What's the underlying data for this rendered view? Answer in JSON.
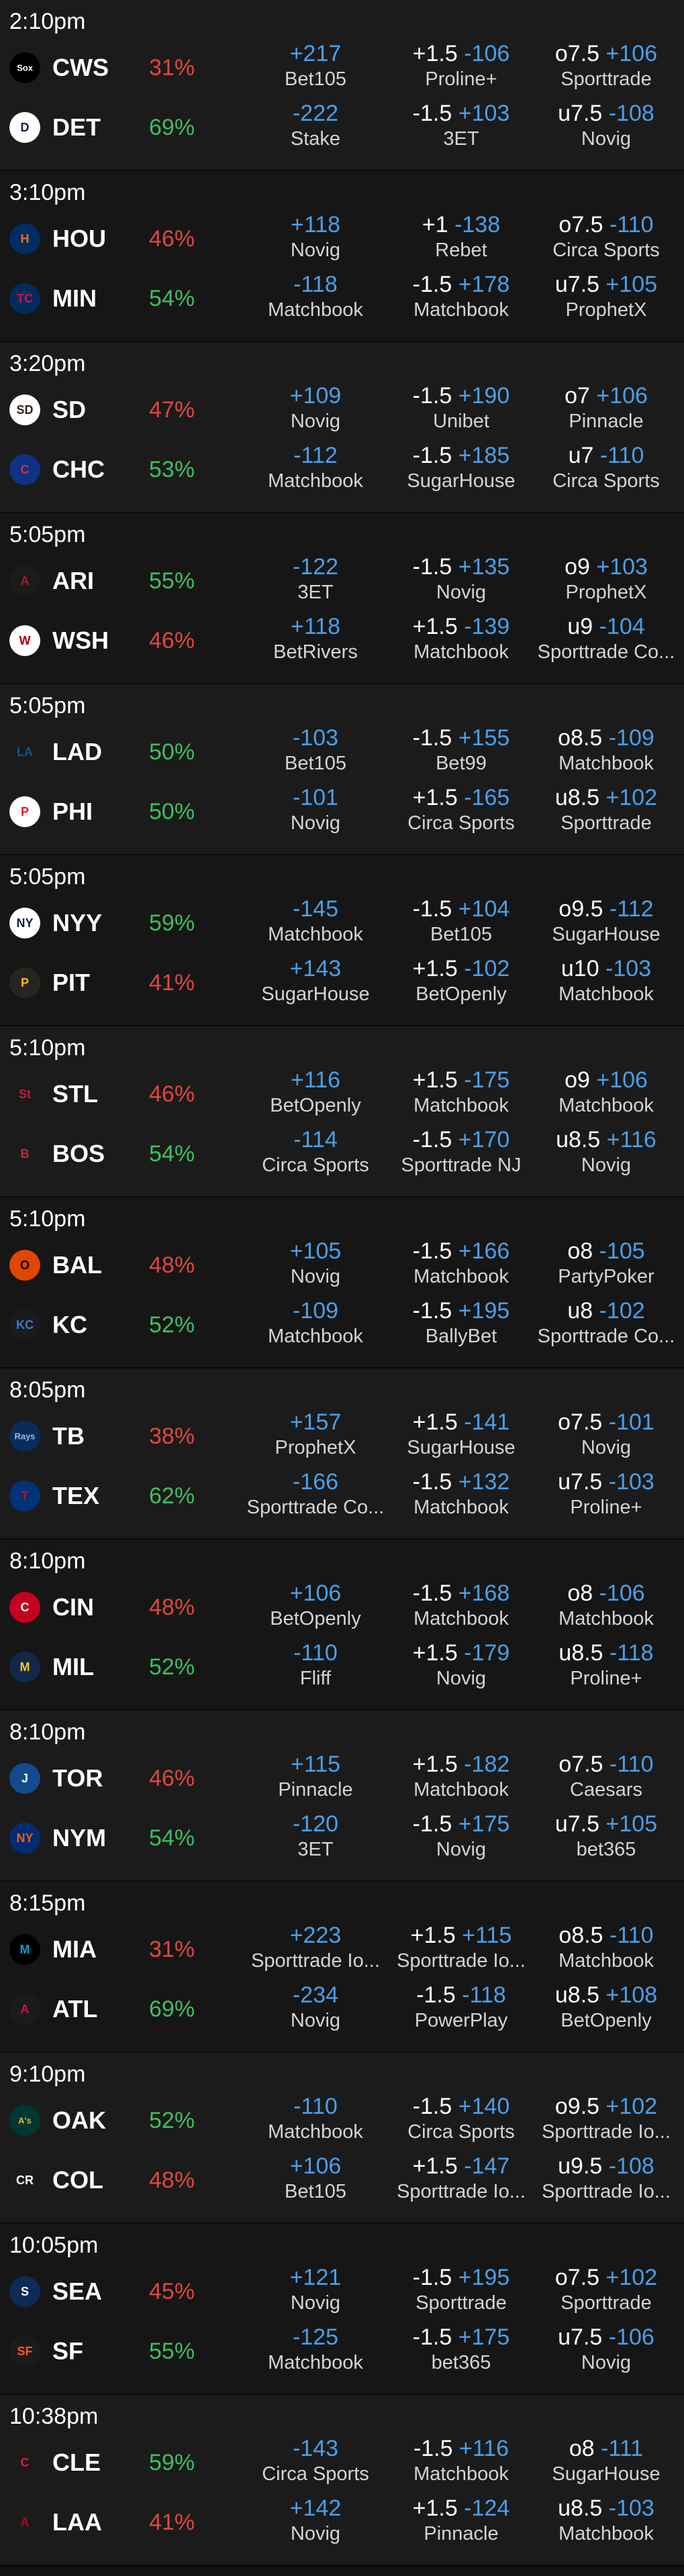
{
  "colors": {
    "background": "#111111",
    "price": "#4a9fe8",
    "probability_favorite": "#3fbf5f",
    "probability_underdog": "#e0473e"
  },
  "games": [
    {
      "time": "2:10pm",
      "teams": [
        {
          "abbr": "CWS",
          "logo_icon": "white-sox-logo-icon",
          "logo_bg": "#000000",
          "logo_fg": "#ffffff",
          "logo_mark": "Sox",
          "prob": "31%",
          "prob_level": "lo",
          "moneyline": {
            "price": "+217",
            "book": "Bet105"
          },
          "spread": {
            "point": "+1.5",
            "price": "-106",
            "book": "Proline+"
          },
          "total": {
            "point": "o7.5",
            "price": "+106",
            "book": "Sporttrade"
          }
        },
        {
          "abbr": "DET",
          "logo_icon": "tigers-logo-icon",
          "logo_bg": "#ffffff",
          "logo_fg": "#0c2340",
          "logo_mark": "D",
          "prob": "69%",
          "prob_level": "hi",
          "moneyline": {
            "price": "-222",
            "book": "Stake"
          },
          "spread": {
            "point": "-1.5",
            "price": "+103",
            "book": "3ET"
          },
          "total": {
            "point": "u7.5",
            "price": "-108",
            "book": "Novig"
          }
        }
      ]
    },
    {
      "time": "3:10pm",
      "teams": [
        {
          "abbr": "HOU",
          "logo_icon": "astros-logo-icon",
          "logo_bg": "#002d62",
          "logo_fg": "#eb6e1f",
          "logo_mark": "H",
          "prob": "46%",
          "prob_level": "lo",
          "moneyline": {
            "price": "+118",
            "book": "Novig"
          },
          "spread": {
            "point": "+1",
            "price": "-138",
            "book": "Rebet"
          },
          "total": {
            "point": "o7.5",
            "price": "-110",
            "book": "Circa Sports"
          }
        },
        {
          "abbr": "MIN",
          "logo_icon": "twins-logo-icon",
          "logo_bg": "#002b5c",
          "logo_fg": "#d31145",
          "logo_mark": "TC",
          "prob": "54%",
          "prob_level": "hi",
          "moneyline": {
            "price": "-118",
            "book": "Matchbook"
          },
          "spread": {
            "point": "-1.5",
            "price": "+178",
            "book": "Matchbook"
          },
          "total": {
            "point": "u7.5",
            "price": "+105",
            "book": "ProphetX"
          }
        }
      ]
    },
    {
      "time": "3:20pm",
      "teams": [
        {
          "abbr": "SD",
          "logo_icon": "padres-logo-icon",
          "logo_bg": "#ffffff",
          "logo_fg": "#2f241d",
          "logo_mark": "SD",
          "prob": "47%",
          "prob_level": "lo",
          "moneyline": {
            "price": "+109",
            "book": "Novig"
          },
          "spread": {
            "point": "-1.5",
            "price": "+190",
            "book": "Unibet"
          },
          "total": {
            "point": "o7",
            "price": "+106",
            "book": "Pinnacle"
          }
        },
        {
          "abbr": "CHC",
          "logo_icon": "cubs-logo-icon",
          "logo_bg": "#0e3386",
          "logo_fg": "#cc3433",
          "logo_mark": "C",
          "prob": "53%",
          "prob_level": "hi",
          "moneyline": {
            "price": "-112",
            "book": "Matchbook"
          },
          "spread": {
            "point": "-1.5",
            "price": "+185",
            "book": "SugarHouse"
          },
          "total": {
            "point": "u7",
            "price": "-110",
            "book": "Circa Sports"
          }
        }
      ]
    },
    {
      "time": "5:05pm",
      "teams": [
        {
          "abbr": "ARI",
          "logo_icon": "diamondbacks-logo-icon",
          "logo_bg": "#1b1b1b",
          "logo_fg": "#a71930",
          "logo_mark": "A",
          "prob": "55%",
          "prob_level": "hi",
          "moneyline": {
            "price": "-122",
            "book": "3ET"
          },
          "spread": {
            "point": "-1.5",
            "price": "+135",
            "book": "Novig"
          },
          "total": {
            "point": "o9",
            "price": "+103",
            "book": "ProphetX"
          }
        },
        {
          "abbr": "WSH",
          "logo_icon": "nationals-logo-icon",
          "logo_bg": "#ffffff",
          "logo_fg": "#ab0003",
          "logo_mark": "W",
          "prob": "46%",
          "prob_level": "lo",
          "moneyline": {
            "price": "+118",
            "book": "BetRivers"
          },
          "spread": {
            "point": "+1.5",
            "price": "-139",
            "book": "Matchbook"
          },
          "total": {
            "point": "u9",
            "price": "-104",
            "book": "Sporttrade Co..."
          }
        }
      ]
    },
    {
      "time": "5:05pm",
      "teams": [
        {
          "abbr": "LAD",
          "logo_icon": "dodgers-logo-icon",
          "logo_bg": "#1b1b1b",
          "logo_fg": "#005a9c",
          "logo_mark": "LA",
          "prob": "50%",
          "prob_level": "hi",
          "moneyline": {
            "price": "-103",
            "book": "Bet105"
          },
          "spread": {
            "point": "-1.5",
            "price": "+155",
            "book": "Bet99"
          },
          "total": {
            "point": "o8.5",
            "price": "-109",
            "book": "Matchbook"
          }
        },
        {
          "abbr": "PHI",
          "logo_icon": "phillies-logo-icon",
          "logo_bg": "#ffffff",
          "logo_fg": "#e81828",
          "logo_mark": "P",
          "prob": "50%",
          "prob_level": "hi",
          "moneyline": {
            "price": "-101",
            "book": "Novig"
          },
          "spread": {
            "point": "+1.5",
            "price": "-165",
            "book": "Circa Sports"
          },
          "total": {
            "point": "u8.5",
            "price": "+102",
            "book": "Sporttrade"
          }
        }
      ]
    },
    {
      "time": "5:05pm",
      "teams": [
        {
          "abbr": "NYY",
          "logo_icon": "yankees-logo-icon",
          "logo_bg": "#ffffff",
          "logo_fg": "#0c2340",
          "logo_mark": "NY",
          "prob": "59%",
          "prob_level": "hi",
          "moneyline": {
            "price": "-145",
            "book": "Matchbook"
          },
          "spread": {
            "point": "-1.5",
            "price": "+104",
            "book": "Bet105"
          },
          "total": {
            "point": "o9.5",
            "price": "-112",
            "book": "SugarHouse"
          }
        },
        {
          "abbr": "PIT",
          "logo_icon": "pirates-logo-icon",
          "logo_bg": "#27251f",
          "logo_fg": "#fdb827",
          "logo_mark": "P",
          "prob": "41%",
          "prob_level": "lo",
          "moneyline": {
            "price": "+143",
            "book": "SugarHouse"
          },
          "spread": {
            "point": "+1.5",
            "price": "-102",
            "book": "BetOpenly"
          },
          "total": {
            "point": "u10",
            "price": "-103",
            "book": "Matchbook"
          }
        }
      ]
    },
    {
      "time": "5:10pm",
      "teams": [
        {
          "abbr": "STL",
          "logo_icon": "cardinals-logo-icon",
          "logo_bg": "#1b1b1b",
          "logo_fg": "#c41e3a",
          "logo_mark": "St",
          "prob": "46%",
          "prob_level": "lo",
          "moneyline": {
            "price": "+116",
            "book": "BetOpenly"
          },
          "spread": {
            "point": "+1.5",
            "price": "-175",
            "book": "Matchbook"
          },
          "total": {
            "point": "o9",
            "price": "+106",
            "book": "Matchbook"
          }
        },
        {
          "abbr": "BOS",
          "logo_icon": "red-sox-logo-icon",
          "logo_bg": "#1b1b1b",
          "logo_fg": "#bd3039",
          "logo_mark": "B",
          "prob": "54%",
          "prob_level": "hi",
          "moneyline": {
            "price": "-114",
            "book": "Circa Sports"
          },
          "spread": {
            "point": "-1.5",
            "price": "+170",
            "book": "Sporttrade NJ"
          },
          "total": {
            "point": "u8.5",
            "price": "+116",
            "book": "Novig"
          }
        }
      ]
    },
    {
      "time": "5:10pm",
      "teams": [
        {
          "abbr": "BAL",
          "logo_icon": "orioles-logo-icon",
          "logo_bg": "#df4601",
          "logo_fg": "#000000",
          "logo_mark": "O",
          "prob": "48%",
          "prob_level": "lo",
          "moneyline": {
            "price": "+105",
            "book": "Novig"
          },
          "spread": {
            "point": "-1.5",
            "price": "+166",
            "book": "Matchbook"
          },
          "total": {
            "point": "o8",
            "price": "-105",
            "book": "PartyPoker"
          }
        },
        {
          "abbr": "KC",
          "logo_icon": "royals-logo-icon",
          "logo_bg": "#1b1b1b",
          "logo_fg": "#3a7bd5",
          "logo_mark": "KC",
          "prob": "52%",
          "prob_level": "hi",
          "moneyline": {
            "price": "-109",
            "book": "Matchbook"
          },
          "spread": {
            "point": "-1.5",
            "price": "+195",
            "book": "BallyBet"
          },
          "total": {
            "point": "u8",
            "price": "-102",
            "book": "Sporttrade Co..."
          }
        }
      ]
    },
    {
      "time": "8:05pm",
      "teams": [
        {
          "abbr": "TB",
          "logo_icon": "rays-logo-icon",
          "logo_bg": "#092c5c",
          "logo_fg": "#8fbce6",
          "logo_mark": "Rays",
          "prob": "38%",
          "prob_level": "lo",
          "moneyline": {
            "price": "+157",
            "book": "ProphetX"
          },
          "spread": {
            "point": "+1.5",
            "price": "-141",
            "book": "SugarHouse"
          },
          "total": {
            "point": "o7.5",
            "price": "-101",
            "book": "Novig"
          }
        },
        {
          "abbr": "TEX",
          "logo_icon": "rangers-logo-icon",
          "logo_bg": "#003278",
          "logo_fg": "#c0111f",
          "logo_mark": "T",
          "prob": "62%",
          "prob_level": "hi",
          "moneyline": {
            "price": "-166",
            "book": "Sporttrade Co..."
          },
          "spread": {
            "point": "-1.5",
            "price": "+132",
            "book": "Matchbook"
          },
          "total": {
            "point": "u7.5",
            "price": "-103",
            "book": "Proline+"
          }
        }
      ]
    },
    {
      "time": "8:10pm",
      "teams": [
        {
          "abbr": "CIN",
          "logo_icon": "reds-logo-icon",
          "logo_bg": "#c6011f",
          "logo_fg": "#ffffff",
          "logo_mark": "C",
          "prob": "48%",
          "prob_level": "lo",
          "moneyline": {
            "price": "+106",
            "book": "BetOpenly"
          },
          "spread": {
            "point": "-1.5",
            "price": "+168",
            "book": "Matchbook"
          },
          "total": {
            "point": "o8",
            "price": "-106",
            "book": "Matchbook"
          }
        },
        {
          "abbr": "MIL",
          "logo_icon": "brewers-logo-icon",
          "logo_bg": "#12284b",
          "logo_fg": "#ffc52f",
          "logo_mark": "M",
          "prob": "52%",
          "prob_level": "hi",
          "moneyline": {
            "price": "-110",
            "book": "Fliff"
          },
          "spread": {
            "point": "+1.5",
            "price": "-179",
            "book": "Novig"
          },
          "total": {
            "point": "u8.5",
            "price": "-118",
            "book": "Proline+"
          }
        }
      ]
    },
    {
      "time": "8:10pm",
      "teams": [
        {
          "abbr": "TOR",
          "logo_icon": "blue-jays-logo-icon",
          "logo_bg": "#134a8e",
          "logo_fg": "#ffffff",
          "logo_mark": "J",
          "prob": "46%",
          "prob_level": "lo",
          "moneyline": {
            "price": "+115",
            "book": "Pinnacle"
          },
          "spread": {
            "point": "+1.5",
            "price": "-182",
            "book": "Matchbook"
          },
          "total": {
            "point": "o7.5",
            "price": "-110",
            "book": "Caesars"
          }
        },
        {
          "abbr": "NYM",
          "logo_icon": "mets-logo-icon",
          "logo_bg": "#002d72",
          "logo_fg": "#ff5910",
          "logo_mark": "NY",
          "prob": "54%",
          "prob_level": "hi",
          "moneyline": {
            "price": "-120",
            "book": "3ET"
          },
          "spread": {
            "point": "-1.5",
            "price": "+175",
            "book": "Novig"
          },
          "total": {
            "point": "u7.5",
            "price": "+105",
            "book": "bet365"
          }
        }
      ]
    },
    {
      "time": "8:15pm",
      "teams": [
        {
          "abbr": "MIA",
          "logo_icon": "marlins-logo-icon",
          "logo_bg": "#000000",
          "logo_fg": "#00a3e0",
          "logo_mark": "M",
          "prob": "31%",
          "prob_level": "lo",
          "moneyline": {
            "price": "+223",
            "book": "Sporttrade Io..."
          },
          "spread": {
            "point": "+1.5",
            "price": "+115",
            "book": "Sporttrade Io..."
          },
          "total": {
            "point": "o8.5",
            "price": "-110",
            "book": "Matchbook"
          }
        },
        {
          "abbr": "ATL",
          "logo_icon": "braves-logo-icon",
          "logo_bg": "#1b1b1b",
          "logo_fg": "#ce1141",
          "logo_mark": "A",
          "prob": "69%",
          "prob_level": "hi",
          "moneyline": {
            "price": "-234",
            "book": "Novig"
          },
          "spread": {
            "point": "-1.5",
            "price": "-118",
            "book": "PowerPlay"
          },
          "total": {
            "point": "u8.5",
            "price": "+108",
            "book": "BetOpenly"
          }
        }
      ]
    },
    {
      "time": "9:10pm",
      "teams": [
        {
          "abbr": "OAK",
          "logo_icon": "athletics-logo-icon",
          "logo_bg": "#003831",
          "logo_fg": "#efb21e",
          "logo_mark": "A's",
          "prob": "52%",
          "prob_level": "hi",
          "moneyline": {
            "price": "-110",
            "book": "Matchbook"
          },
          "spread": {
            "point": "-1.5",
            "price": "+140",
            "book": "Circa Sports"
          },
          "total": {
            "point": "o9.5",
            "price": "+102",
            "book": "Sporttrade Io..."
          }
        },
        {
          "abbr": "COL",
          "logo_icon": "rockies-logo-icon",
          "logo_bg": "#1b1b1b",
          "logo_fg": "#ffffff",
          "logo_mark": "CR",
          "prob": "48%",
          "prob_level": "lo",
          "moneyline": {
            "price": "+106",
            "book": "Bet105"
          },
          "spread": {
            "point": "+1.5",
            "price": "-147",
            "book": "Sporttrade Io..."
          },
          "total": {
            "point": "u9.5",
            "price": "-108",
            "book": "Sporttrade Io..."
          }
        }
      ]
    },
    {
      "time": "10:05pm",
      "teams": [
        {
          "abbr": "SEA",
          "logo_icon": "mariners-logo-icon",
          "logo_bg": "#0c2c56",
          "logo_fg": "#ffffff",
          "logo_mark": "S",
          "prob": "45%",
          "prob_level": "lo",
          "moneyline": {
            "price": "+121",
            "book": "Novig"
          },
          "spread": {
            "point": "-1.5",
            "price": "+195",
            "book": "Sporttrade"
          },
          "total": {
            "point": "o7.5",
            "price": "+102",
            "book": "Sporttrade"
          }
        },
        {
          "abbr": "SF",
          "logo_icon": "giants-logo-icon",
          "logo_bg": "#1b1b1b",
          "logo_fg": "#fd5a1e",
          "logo_mark": "SF",
          "prob": "55%",
          "prob_level": "hi",
          "moneyline": {
            "price": "-125",
            "book": "Matchbook"
          },
          "spread": {
            "point": "-1.5",
            "price": "+175",
            "book": "bet365"
          },
          "total": {
            "point": "u7.5",
            "price": "-106",
            "book": "Novig"
          }
        }
      ]
    },
    {
      "time": "10:38pm",
      "teams": [
        {
          "abbr": "CLE",
          "logo_icon": "guardians-logo-icon",
          "logo_bg": "#1b1b1b",
          "logo_fg": "#e31937",
          "logo_mark": "C",
          "prob": "59%",
          "prob_level": "hi",
          "moneyline": {
            "price": "-143",
            "book": "Circa Sports"
          },
          "spread": {
            "point": "-1.5",
            "price": "+116",
            "book": "Matchbook"
          },
          "total": {
            "point": "o8",
            "price": "-111",
            "book": "SugarHouse"
          }
        },
        {
          "abbr": "LAA",
          "logo_icon": "angels-logo-icon",
          "logo_bg": "#1b1b1b",
          "logo_fg": "#ba0021",
          "logo_mark": "A",
          "prob": "41%",
          "prob_level": "lo",
          "moneyline": {
            "price": "+142",
            "book": "Novig"
          },
          "spread": {
            "point": "+1.5",
            "price": "-124",
            "book": "Pinnacle"
          },
          "total": {
            "point": "u8.5",
            "price": "-103",
            "book": "Matchbook"
          }
        }
      ]
    }
  ]
}
